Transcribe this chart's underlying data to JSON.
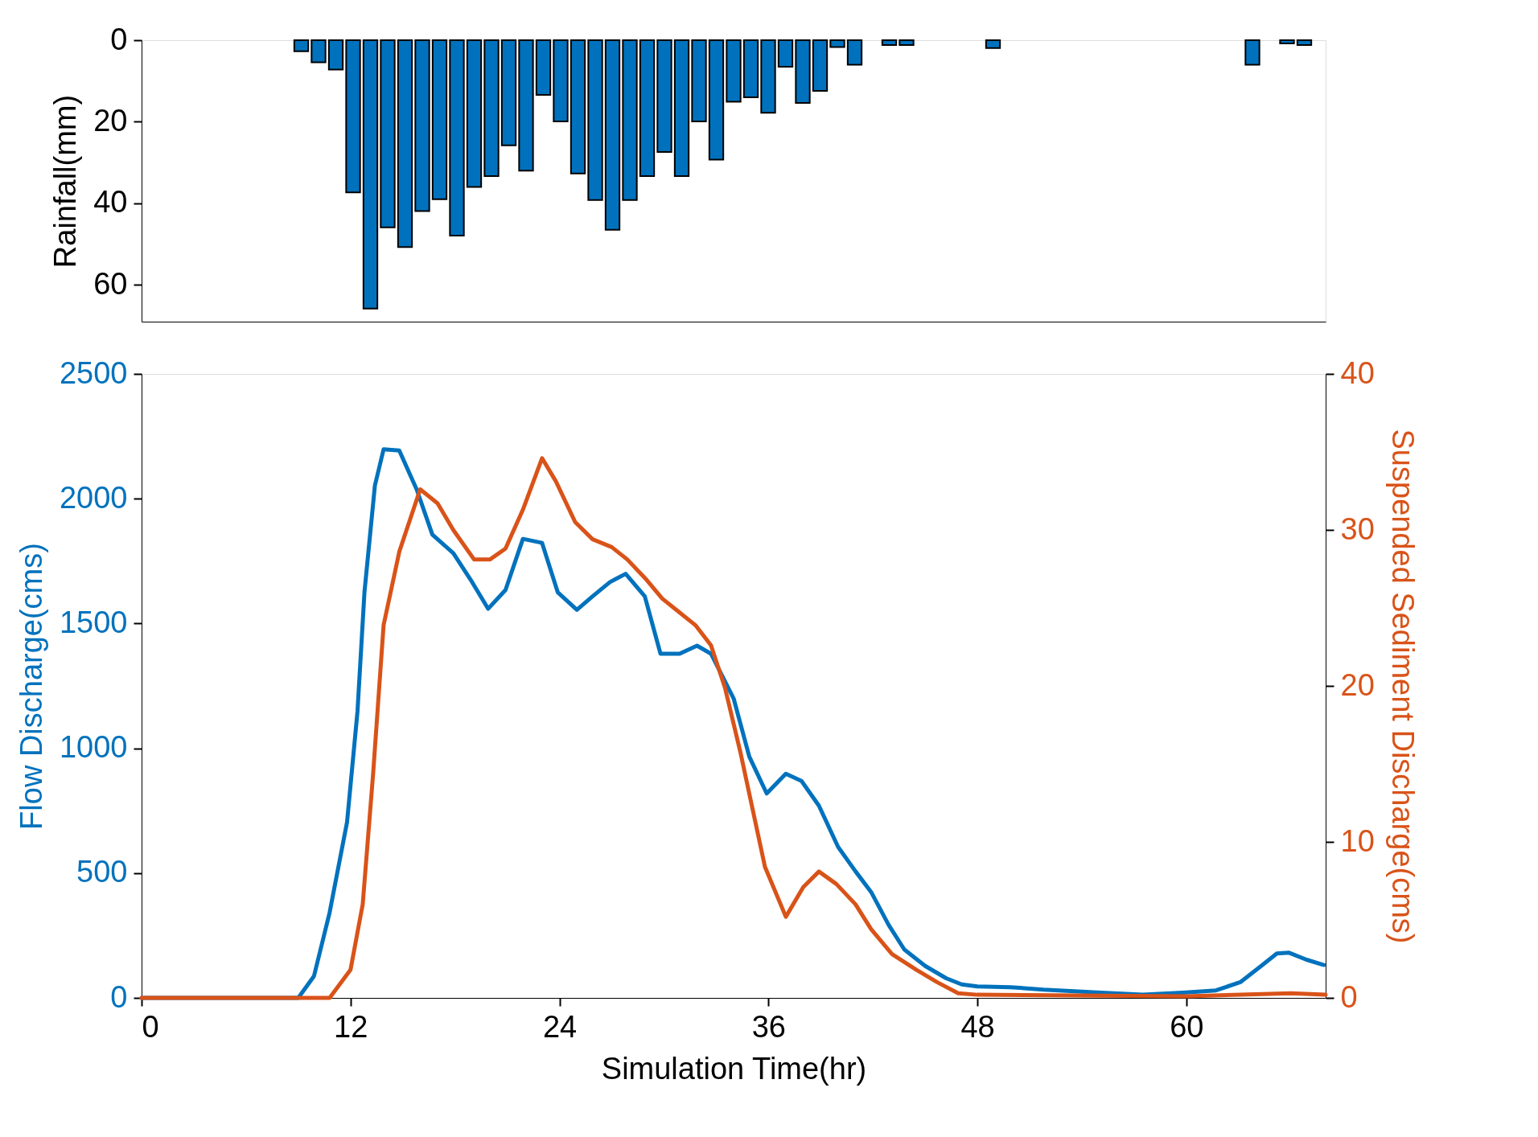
{
  "chart_data": [
    {
      "type": "bar",
      "ylabel": "Rainfall(mm)",
      "xlim": [
        0,
        68
      ],
      "ylim": [
        69,
        0
      ],
      "yticks": [
        0,
        20,
        40,
        60
      ],
      "tick_labels": "y",
      "grid": false,
      "x": [
        9,
        10,
        11,
        12,
        13,
        14,
        15,
        16,
        17,
        18,
        19,
        20,
        21,
        22,
        23,
        24,
        25,
        26,
        27,
        28,
        29,
        30,
        31,
        32,
        33,
        34,
        35,
        36,
        37,
        38,
        39,
        40,
        41,
        43,
        44,
        49,
        64,
        66,
        67
      ],
      "series": [
        {
          "color": "#0072bd",
          "values": [
            2.7,
            5.4,
            7.2,
            37.3,
            65.8,
            45.9,
            50.7,
            41.9,
            39.0,
            47.9,
            36.0,
            33.3,
            25.8,
            32.0,
            13.4,
            19.9,
            32.7,
            39.2,
            46.5,
            39.2,
            33.3,
            27.4,
            33.3,
            19.9,
            29.3,
            15.1,
            14.0,
            17.8,
            6.5,
            15.4,
            12.4,
            1.7,
            6.0,
            1.2,
            1.2,
            1.9,
            6.0,
            0.8,
            1.2
          ]
        }
      ]
    },
    {
      "type": "line",
      "xlabel": "Simulation Time(hr)",
      "ylabel": "Flow Discharge(cms)",
      "y2label": "Suspended Sediment Discharge(cms)",
      "xlim": [
        0,
        68
      ],
      "xticks": [
        0,
        12,
        24,
        36,
        48,
        60
      ],
      "ylim": [
        0,
        2500
      ],
      "yticks": [
        0,
        500,
        1000,
        1500,
        2000,
        2500
      ],
      "y2lim": [
        0,
        40
      ],
      "y2ticks": [
        0,
        10,
        20,
        30,
        40
      ],
      "grid": false,
      "marker": "none",
      "line_style": "solid",
      "series": [
        {
          "color": "#0072bd",
          "x": [
            0,
            9.0,
            9.9,
            10.8,
            11.8,
            12.4,
            12.8,
            13.4,
            13.9,
            14.8,
            15.8,
            16.7,
            17.9,
            18.9,
            19.9,
            20.9,
            21.9,
            23.0,
            23.9,
            25.0,
            25.9,
            26.9,
            27.8,
            28.9,
            29.8,
            30.9,
            31.9,
            32.7,
            34.0,
            34.9,
            35.9,
            37.0,
            37.9,
            38.9,
            40.0,
            41.0,
            41.9,
            42.9,
            43.8,
            45.0,
            46.2,
            47.1,
            48.0,
            49.9,
            51.8,
            55.1,
            57.5,
            59.8,
            61.7,
            63.1,
            64.3,
            65.2,
            65.9,
            66.9,
            67.9
          ],
          "values": [
            0,
            0,
            87,
            342,
            704,
            1148,
            1625,
            2053,
            2198,
            2193,
            2037,
            1856,
            1782,
            1675,
            1559,
            1634,
            1839,
            1823,
            1625,
            1555,
            1609,
            1666,
            1699,
            1609,
            1379,
            1379,
            1411,
            1379,
            1200,
            967,
            819,
            898,
            869,
            770,
            605,
            507,
            424,
            293,
            194,
            128,
            79,
            54,
            46,
            43,
            33,
            21,
            13,
            21,
            30,
            63,
            128,
            178,
            181,
            153,
            132
          ]
        },
        {
          "color": "#d95319",
          "axis": "y2",
          "x": [
            0,
            10.8,
            12.0,
            12.7,
            13.3,
            13.9,
            14.8,
            16.0,
            17.0,
            17.9,
            19.1,
            20.0,
            20.9,
            21.9,
            23.0,
            23.8,
            24.9,
            25.9,
            27.0,
            27.9,
            29.0,
            29.9,
            30.9,
            31.8,
            32.7,
            33.5,
            34.4,
            35.8,
            37.0,
            38.0,
            38.9,
            39.9,
            41.0,
            41.9,
            43.1,
            44.5,
            45.7,
            46.9,
            48.0,
            60.0,
            66.0,
            68.0
          ],
          "values": [
            0,
            0,
            1.8,
            6.0,
            14.4,
            23.9,
            28.6,
            32.6,
            31.7,
            30.0,
            28.1,
            28.1,
            28.8,
            31.3,
            34.6,
            33.1,
            30.5,
            29.4,
            28.9,
            28.1,
            26.8,
            25.6,
            24.7,
            23.9,
            22.6,
            19.9,
            15.7,
            8.4,
            5.2,
            7.1,
            8.1,
            7.3,
            6.0,
            4.4,
            2.8,
            1.8,
            1.0,
            0.3,
            0.2,
            0.1,
            0.3,
            0.2
          ]
        }
      ]
    }
  ]
}
